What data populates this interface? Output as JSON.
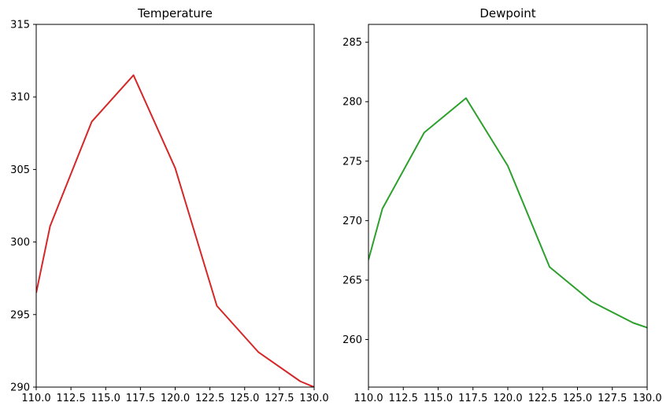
{
  "chart_data": [
    {
      "type": "line",
      "title": "Temperature",
      "xlabel": "",
      "ylabel": "",
      "xlim": [
        110,
        130
      ],
      "ylim": [
        290,
        315
      ],
      "grid": false,
      "x_ticks": [
        "110.0",
        "112.5",
        "115.0",
        "117.5",
        "120.0",
        "122.5",
        "125.0",
        "127.5",
        "130.0"
      ],
      "y_ticks": [
        "290",
        "295",
        "300",
        "305",
        "310",
        "315"
      ],
      "series": [
        {
          "color": "#d62728",
          "x": [
            110,
            111,
            114,
            117,
            120,
            123,
            126,
            129,
            130
          ],
          "values": [
            296.5,
            301.1,
            308.3,
            311.5,
            305.1,
            295.6,
            292.4,
            290.4,
            290.0
          ]
        }
      ]
    },
    {
      "type": "line",
      "title": "Dewpoint",
      "xlabel": "",
      "ylabel": "",
      "xlim": [
        110,
        130
      ],
      "ylim": [
        256,
        286.5
      ],
      "grid": false,
      "x_ticks": [
        "110.0",
        "112.5",
        "115.0",
        "117.5",
        "120.0",
        "122.5",
        "125.0",
        "127.5",
        "130.0"
      ],
      "y_ticks": [
        "260",
        "265",
        "270",
        "275",
        "280",
        "285"
      ],
      "series": [
        {
          "color": "#2ca02c",
          "x": [
            110,
            111,
            114,
            117,
            120,
            123,
            126,
            129,
            130
          ],
          "values": [
            266.7,
            271.0,
            277.4,
            280.3,
            274.6,
            266.1,
            263.2,
            261.4,
            261.0
          ]
        }
      ]
    }
  ]
}
